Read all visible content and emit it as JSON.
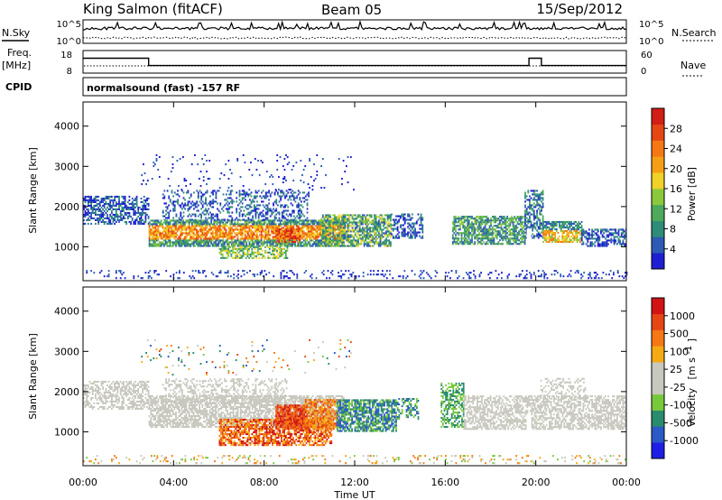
{
  "header": {
    "radar": "King Salmon (fitACF)",
    "beam": "Beam 05",
    "date": "15/Sep/2012"
  },
  "labels": {
    "nsky": "N.Sky",
    "nsearch": "N.Search",
    "freq_line1": "Freq.",
    "freq_line2": "[MHz]",
    "nave": "Nave",
    "cpid": "CPID",
    "cpid_value": "normalsound (fast) -157 RF"
  },
  "colors": {
    "cb_power": [
      "#1e1ed2",
      "#2d5ab4",
      "#2e8c78",
      "#4caa5a",
      "#8cc83c",
      "#f0d228",
      "#f5a014",
      "#f57814",
      "#e64614",
      "#d21e14"
    ],
    "cb_velocity": [
      "#1e1ee6",
      "#2a5ac8",
      "#2a8c6e",
      "#78c83c",
      "#c8c8be",
      "#c8c8be",
      "#f5aa14",
      "#f57814",
      "#e64614",
      "#d21414"
    ],
    "scatter_grey": "#c8c8be"
  },
  "chart_data": [
    {
      "type": "line",
      "name": "nsky-nsearch-panel",
      "left_ticks": [
        "10^5",
        "10^0"
      ],
      "right_ticks": [
        "10^5",
        "10^0"
      ],
      "description_series": [
        "N.Sky",
        "N.Search"
      ]
    },
    {
      "type": "line",
      "name": "freq-nave-panel",
      "left_ticks": [
        "18",
        "8"
      ],
      "right_ticks": [
        "60",
        "0"
      ],
      "freq_steps": [
        {
          "t0": 0.0,
          "t1": 2.9,
          "value": 15.5
        },
        {
          "t0": 2.9,
          "t1": 19.7,
          "value": 11.0
        },
        {
          "t0": 19.7,
          "t1": 20.25,
          "value": 15.5
        },
        {
          "t0": 20.25,
          "t1": 24.0,
          "value": 11.0
        }
      ]
    },
    {
      "type": "heatmap",
      "name": "power-panel",
      "ylabel": "Slant Range [km]",
      "ylim": [
        180,
        4600
      ],
      "yticks": [
        "1000",
        "2000",
        "3000",
        "4000"
      ],
      "xlim": [
        0,
        24
      ],
      "colorbar_label": "Power [dB]",
      "colorbar_ticks": [
        "28",
        "24",
        "20",
        "16",
        "12",
        "8",
        "4"
      ]
    },
    {
      "type": "heatmap",
      "name": "velocity-panel",
      "ylabel": "Slant Range [km]",
      "ylim": [
        180,
        4600
      ],
      "yticks": [
        "1000",
        "2000",
        "3000",
        "4000"
      ],
      "xlim": [
        0,
        24
      ],
      "xlabel": "Time UT",
      "xticks": [
        "00:00",
        "04:00",
        "08:00",
        "12:00",
        "16:00",
        "20:00",
        "00:00"
      ],
      "colorbar_label_main": "Velocity",
      "colorbar_label_unit": "[m s",
      "colorbar_label_exp": "-1",
      "colorbar_label_close": "]",
      "colorbar_ticks": [
        "1000",
        "500",
        "100",
        "25",
        "-25",
        "-100",
        "-500",
        "-1000"
      ]
    }
  ]
}
